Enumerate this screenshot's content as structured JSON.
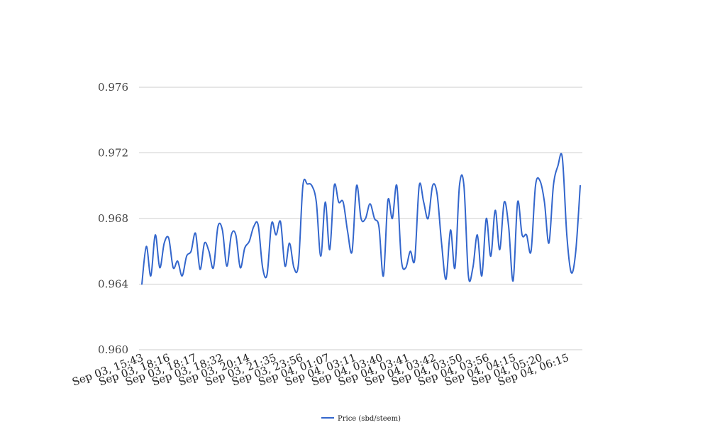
{
  "chart_data": {
    "type": "line",
    "title": "",
    "xlabel": "",
    "ylabel": "",
    "ylim": [
      0.96,
      0.976
    ],
    "y_ticks": [
      "0.960",
      "0.964",
      "0.968",
      "0.972",
      "0.976"
    ],
    "grid": "horizontal",
    "legend_position": "bottom",
    "colors": {
      "series": "#3366cc",
      "grid": "#cccccc"
    },
    "x_tick_labels": [
      "Sep 03, 15:43",
      "Sep 03, 18:16",
      "Sep 03, 18:17",
      "Sep 03, 18:32",
      "Sep 03, 20:14",
      "Sep 03, 21:35",
      "Sep 03, 23:56",
      "Sep 04, 01:07",
      "Sep 04, 03:11",
      "Sep 04, 03:40",
      "Sep 04, 03:41",
      "Sep 04, 03:42",
      "Sep 04, 03:50",
      "Sep 04, 03:56",
      "Sep 04, 04:15",
      "Sep 04, 05:20",
      "Sep 04, 06:15"
    ],
    "series": [
      {
        "name": "Price (sbd/steem)",
        "values": [
          0.964,
          0.9663,
          0.9645,
          0.967,
          0.965,
          0.9665,
          0.9668,
          0.965,
          0.9654,
          0.9645,
          0.9657,
          0.966,
          0.9671,
          0.9649,
          0.9665,
          0.966,
          0.965,
          0.9675,
          0.9673,
          0.9651,
          0.967,
          0.967,
          0.965,
          0.9662,
          0.9666,
          0.9675,
          0.9676,
          0.965,
          0.9646,
          0.9677,
          0.967,
          0.9678,
          0.9651,
          0.9665,
          0.965,
          0.9652,
          0.97,
          0.9701,
          0.97,
          0.969,
          0.9657,
          0.969,
          0.9661,
          0.97,
          0.969,
          0.969,
          0.9672,
          0.966,
          0.97,
          0.968,
          0.968,
          0.9689,
          0.968,
          0.9675,
          0.9645,
          0.9691,
          0.968,
          0.97,
          0.9655,
          0.965,
          0.966,
          0.9655,
          0.97,
          0.969,
          0.968,
          0.97,
          0.9695,
          0.9665,
          0.9643,
          0.9673,
          0.965,
          0.97,
          0.97,
          0.9645,
          0.965,
          0.967,
          0.9645,
          0.968,
          0.9657,
          0.9685,
          0.9661,
          0.969,
          0.9675,
          0.9642,
          0.969,
          0.967,
          0.967,
          0.966,
          0.97,
          0.9703,
          0.969,
          0.9665,
          0.97,
          0.9712,
          0.9717,
          0.967,
          0.9647,
          0.966,
          0.97
        ]
      }
    ]
  }
}
